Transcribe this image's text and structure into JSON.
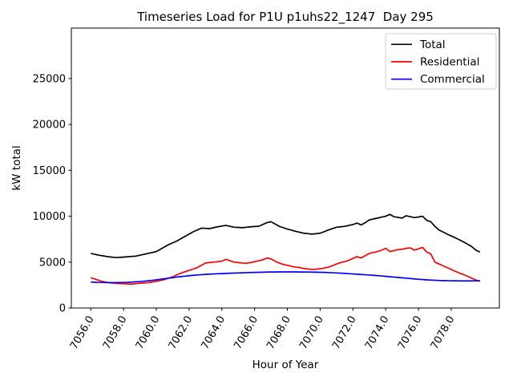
{
  "window": {
    "background_color": "#ffffff"
  },
  "chart_data": {
    "type": "line",
    "title": "Timeseries Load for P1U p1uhs22_1247  Day 295",
    "xlabel": "Hour of Year",
    "ylabel": "kW total",
    "grid": false,
    "legend_position": "upper right",
    "xlim": [
      7054.8125,
      7080.9375
    ],
    "ylim": [
      0,
      30500
    ],
    "xticks": [
      7056.0,
      7058.0,
      7060.0,
      7062.0,
      7064.0,
      7066.0,
      7068.0,
      7070.0,
      7072.0,
      7074.0,
      7076.0,
      7078.0
    ],
    "xtick_labels": [
      "7056.0",
      "7058.0",
      "7060.0",
      "7062.0",
      "7064.0",
      "7066.0",
      "7068.0",
      "7070.0",
      "7072.0",
      "7074.0",
      "7076.0",
      "7078.0"
    ],
    "yticks": [
      0,
      5000,
      10000,
      15000,
      20000,
      25000
    ],
    "ytick_labels": [
      "0",
      "5000",
      "10000",
      "15000",
      "20000",
      "25000"
    ],
    "x_start": 7056.0,
    "x_step": 0.25,
    "x_end": 7079.75,
    "series": [
      {
        "name": "Total",
        "color": "#000000",
        "values": [
          5950,
          5850,
          5750,
          5680,
          5600,
          5550,
          5500,
          5520,
          5550,
          5580,
          5620,
          5650,
          5750,
          5850,
          5950,
          6050,
          6150,
          6400,
          6650,
          6900,
          7100,
          7300,
          7550,
          7800,
          8050,
          8300,
          8500,
          8700,
          8680,
          8650,
          8750,
          8850,
          8930,
          9000,
          8900,
          8800,
          8780,
          8750,
          8800,
          8850,
          8880,
          8900,
          9100,
          9300,
          9400,
          9150,
          8900,
          8750,
          8600,
          8480,
          8350,
          8250,
          8150,
          8100,
          8050,
          8100,
          8150,
          8320,
          8500,
          8650,
          8800,
          8850,
          8900,
          9000,
          9100,
          9250,
          9050,
          9300,
          9600,
          9700,
          9800,
          9900,
          10000,
          10200,
          9950,
          9870,
          9800,
          10050,
          9950,
          9850,
          9920,
          10000,
          9550,
          9400,
          8900,
          8500,
          8280,
          8050,
          7850,
          7650,
          7430,
          7200,
          6950,
          6700,
          6300,
          6100
        ]
      },
      {
        "name": "Residential",
        "color": "#ff0000",
        "values": [
          3300,
          3150,
          3000,
          2880,
          2780,
          2720,
          2680,
          2660,
          2650,
          2620,
          2600,
          2650,
          2700,
          2730,
          2760,
          2830,
          2900,
          3000,
          3100,
          3250,
          3400,
          3600,
          3800,
          3950,
          4100,
          4250,
          4400,
          4650,
          4900,
          4950,
          5000,
          5050,
          5100,
          5300,
          5150,
          5000,
          4950,
          4900,
          4880,
          4950,
          5050,
          5150,
          5250,
          5450,
          5350,
          5100,
          4900,
          4750,
          4650,
          4550,
          4450,
          4400,
          4300,
          4250,
          4200,
          4230,
          4280,
          4350,
          4450,
          4600,
          4800,
          4950,
          5050,
          5200,
          5400,
          5600,
          5450,
          5700,
          5950,
          6050,
          6150,
          6300,
          6500,
          6150,
          6250,
          6350,
          6400,
          6500,
          6550,
          6300,
          6450,
          6600,
          6100,
          5900,
          5000,
          4800,
          4600,
          4400,
          4200,
          4000,
          3800,
          3650,
          3450,
          3250,
          3050,
          2900
        ]
      },
      {
        "name": "Commercial",
        "color": "#0000ff",
        "values": [
          2830,
          2810,
          2790,
          2780,
          2775,
          2770,
          2770,
          2775,
          2780,
          2800,
          2820,
          2850,
          2880,
          2920,
          2960,
          3010,
          3070,
          3130,
          3190,
          3250,
          3310,
          3370,
          3420,
          3470,
          3520,
          3560,
          3600,
          3630,
          3660,
          3690,
          3710,
          3730,
          3750,
          3770,
          3790,
          3805,
          3820,
          3835,
          3850,
          3865,
          3880,
          3890,
          3900,
          3910,
          3920,
          3925,
          3930,
          3930,
          3930,
          3930,
          3930,
          3925,
          3920,
          3915,
          3910,
          3900,
          3890,
          3875,
          3860,
          3840,
          3820,
          3795,
          3770,
          3740,
          3710,
          3680,
          3650,
          3620,
          3590,
          3560,
          3530,
          3490,
          3450,
          3410,
          3370,
          3330,
          3290,
          3250,
          3210,
          3170,
          3130,
          3100,
          3070,
          3040,
          3020,
          3000,
          2985,
          2975,
          2965,
          2960,
          2955,
          2950,
          2950,
          2955,
          2965,
          2980
        ]
      }
    ]
  }
}
